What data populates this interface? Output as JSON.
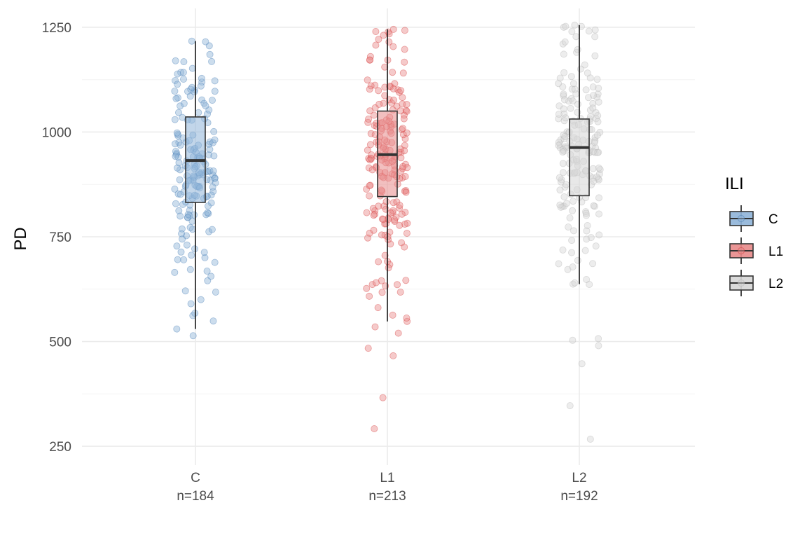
{
  "chart_data": {
    "type": "boxplot",
    "xlabel": "",
    "ylabel": "PD",
    "ylim": [
      205,
      1295
    ],
    "y_ticks": [
      250,
      500,
      750,
      1000,
      1250
    ],
    "grid": true,
    "categories": [
      "C",
      "L1",
      "L2"
    ],
    "counts": [
      "n=184",
      "n=213",
      "n=192"
    ],
    "legend": {
      "title": "ILI",
      "placement": "right",
      "entries": [
        "C",
        "L1",
        "L2"
      ]
    },
    "colors": {
      "C": "#4a7fb5",
      "L1": "#d43c3c",
      "L2": "#b3b3b3"
    },
    "fills": {
      "C": "#8fb4d8",
      "L1": "#e88a8a",
      "L2": "#d6d6d6"
    },
    "boxes": [
      {
        "group": "C",
        "whisker_low": 530,
        "q1": 832,
        "median": 932,
        "q3": 1036,
        "whisker_high": 1217
      },
      {
        "group": "L1",
        "whisker_low": 548,
        "q1": 846,
        "median": 946,
        "q3": 1050,
        "whisker_high": 1245
      },
      {
        "group": "L2",
        "whisker_low": 637,
        "q1": 848,
        "median": 963,
        "q3": 1031,
        "whisker_high": 1255
      }
    ],
    "jitter_points": [
      {
        "group": "C",
        "n": 184,
        "q1": 832,
        "median": 932,
        "q3": 1036,
        "min": 514,
        "max": 1217,
        "extra": [
          514,
          530,
          549,
          562,
          600,
          618,
          645,
          668,
          672,
          695,
          700,
          728,
          1170,
          1185,
          1217
        ]
      },
      {
        "group": "L1",
        "n": 213,
        "q1": 846,
        "median": 946,
        "q3": 1050,
        "min": 292,
        "max": 1245,
        "extra": [
          292,
          366,
          466,
          484,
          520,
          535,
          548,
          556,
          563,
          608,
          618,
          646,
          1180,
          1215,
          1245
        ]
      },
      {
        "group": "L2",
        "n": 192,
        "q1": 848,
        "median": 963,
        "q3": 1031,
        "min": 267,
        "max": 1255,
        "extra": [
          267,
          347,
          447,
          490,
          503,
          507,
          637,
          640,
          648,
          672,
          686,
          1190,
          1210,
          1215,
          1250,
          1255
        ]
      }
    ]
  }
}
